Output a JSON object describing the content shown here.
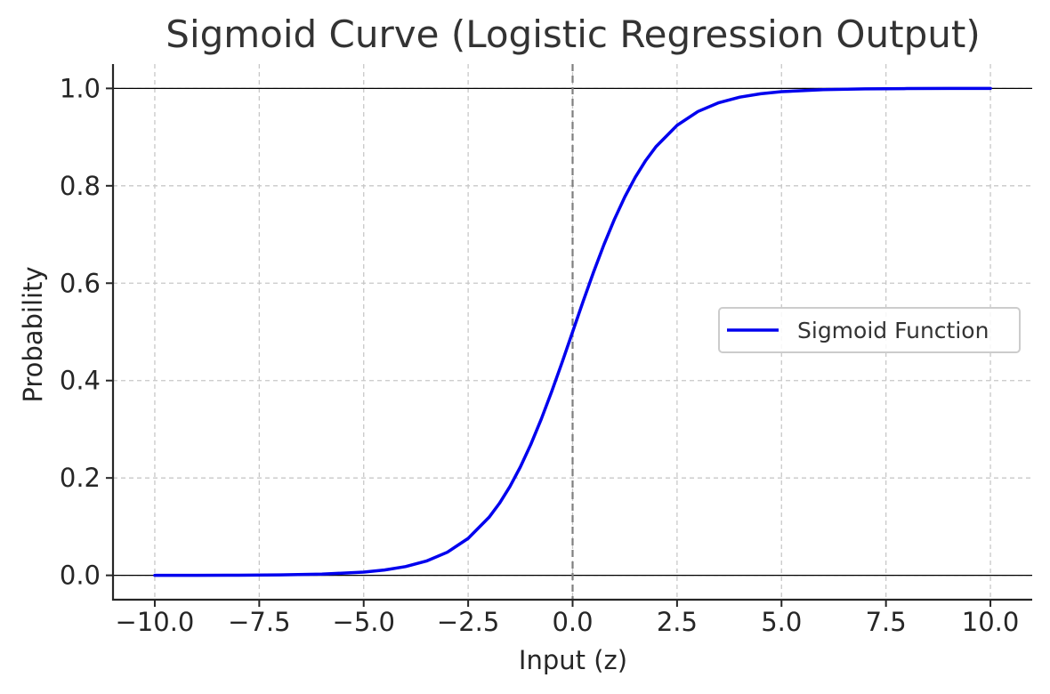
{
  "chart_data": {
    "type": "line",
    "title": "Sigmoid Curve (Logistic Regression Output)",
    "xlabel": "Input (z)",
    "ylabel": "Probability",
    "xlim": [
      -11,
      11
    ],
    "ylim": [
      -0.05,
      1.05
    ],
    "xticks": [
      -10.0,
      -7.5,
      -5.0,
      -2.5,
      0.0,
      2.5,
      5.0,
      7.5,
      10.0
    ],
    "xtick_labels": [
      "−10.0",
      "−7.5",
      "−5.0",
      "−2.5",
      "0.0",
      "2.5",
      "5.0",
      "7.5",
      "10.0"
    ],
    "yticks": [
      0.0,
      0.2,
      0.4,
      0.6,
      0.8,
      1.0
    ],
    "ytick_labels": [
      "0.0",
      "0.2",
      "0.4",
      "0.6",
      "0.8",
      "1.0"
    ],
    "grid": true,
    "legend_position": "center-right",
    "reference_lines": {
      "horizontal": [
        0,
        1
      ],
      "vertical": [
        0
      ]
    },
    "series": [
      {
        "name": "Sigmoid Function",
        "color": "#0000ee",
        "x": [
          -10,
          -9,
          -8,
          -7,
          -6,
          -5,
          -4.5,
          -4,
          -3.5,
          -3,
          -2.5,
          -2,
          -1.75,
          -1.5,
          -1.25,
          -1,
          -0.75,
          -0.5,
          -0.25,
          0,
          0.25,
          0.5,
          0.75,
          1,
          1.25,
          1.5,
          1.75,
          2,
          2.5,
          3,
          3.5,
          4,
          4.5,
          5,
          6,
          7,
          8,
          9,
          10
        ],
        "y": [
          5e-05,
          0.00012,
          0.00034,
          0.00091,
          0.00247,
          0.00669,
          0.01099,
          0.01799,
          0.02931,
          0.04743,
          0.07586,
          0.1192,
          0.148,
          0.18243,
          0.2227,
          0.26894,
          0.32082,
          0.37754,
          0.43782,
          0.5,
          0.56218,
          0.62246,
          0.67918,
          0.73106,
          0.7773,
          0.81757,
          0.852,
          0.8808,
          0.92414,
          0.95257,
          0.97069,
          0.98201,
          0.98901,
          0.99331,
          0.99753,
          0.99909,
          0.99966,
          0.99988,
          0.99995
        ]
      }
    ],
    "colors": {
      "grid": "#c8c8c8",
      "axis": "#262626",
      "reference": "#000000",
      "zero_line": "#7f7f7f"
    }
  }
}
